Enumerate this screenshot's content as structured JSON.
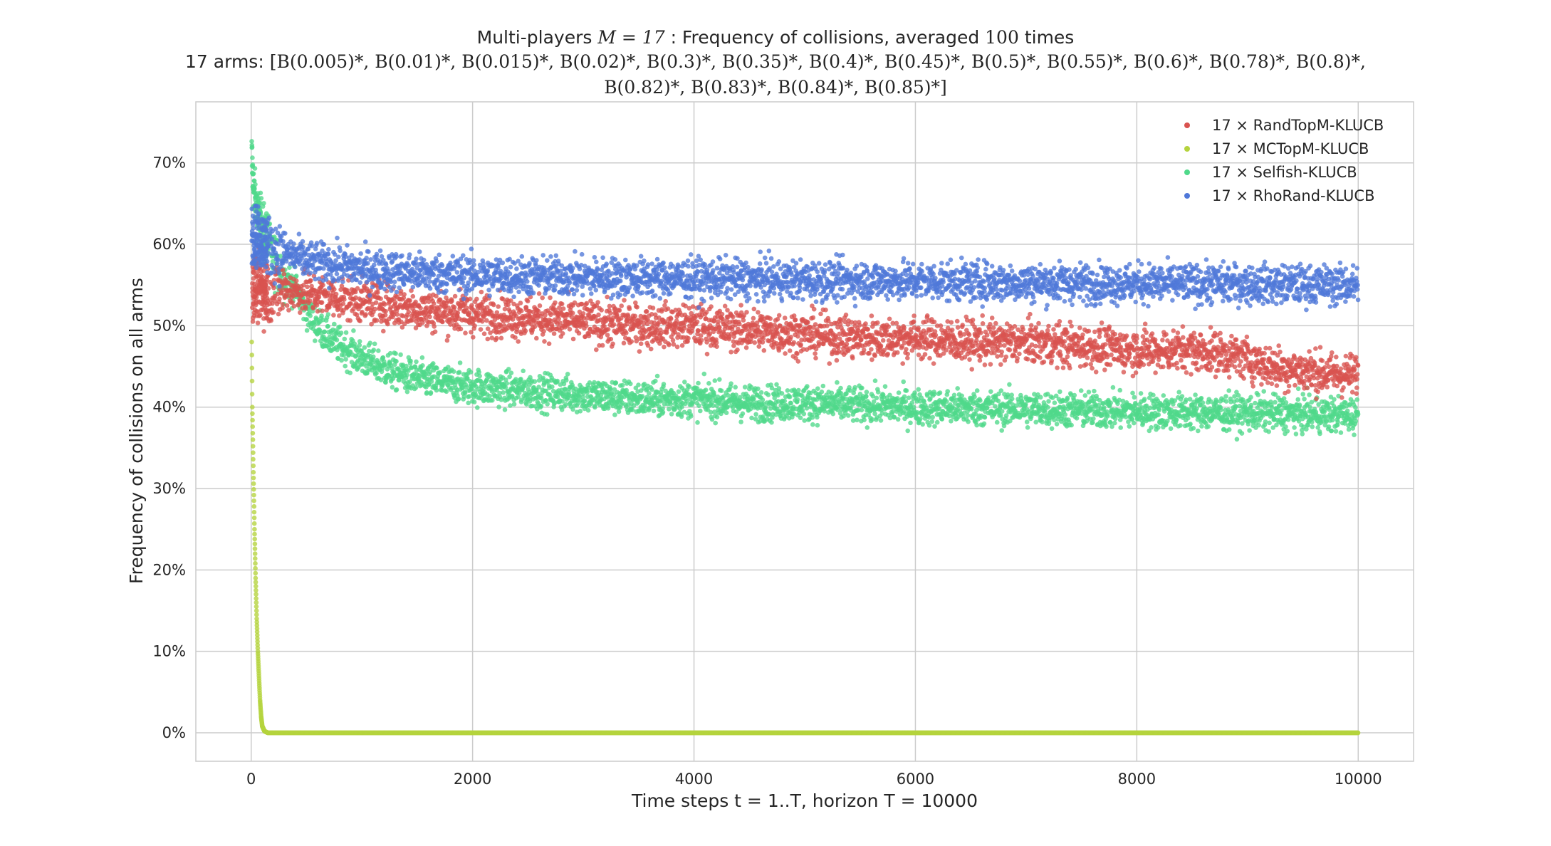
{
  "title": {
    "line1_prefix": "Multi-players",
    "line1_math": "M = 17",
    "line1_suffix": ": Frequency of collisions, averaged",
    "line1_math2": "100",
    "line1_end": "times",
    "line2_prefix": "17 arms:",
    "line2_math": "[B(0.005)*, B(0.01)*, B(0.015)*, B(0.02)*, B(0.3)*, B(0.35)*, B(0.4)*, B(0.45)*, B(0.5)*, B(0.55)*, B(0.6)*, B(0.78)*, B(0.8)*,",
    "line3_math": "B(0.82)*, B(0.83)*, B(0.84)*, B(0.85)*]"
  },
  "chart_data": {
    "type": "scatter",
    "xlabel": "Time steps t = 1..T, horizon T = 10000",
    "ylabel": "Frequency of collisions on all arms",
    "xlim": [
      -500,
      10500
    ],
    "ylim": [
      -0.035,
      0.775
    ],
    "xticks": [
      0,
      2000,
      4000,
      6000,
      8000,
      10000
    ],
    "xtick_labels": [
      "0",
      "2000",
      "4000",
      "6000",
      "8000",
      "10000"
    ],
    "yticks": [
      0,
      0.1,
      0.2,
      0.3,
      0.4,
      0.5,
      0.6,
      0.7
    ],
    "ytick_labels": [
      "0%",
      "10%",
      "20%",
      "30%",
      "40%",
      "50%",
      "60%",
      "70%"
    ],
    "grid": true,
    "legend_position": "top-right",
    "series": [
      {
        "name": "17 × RandTopM-KLUCB",
        "color": "#d9534f",
        "x": [
          10,
          100,
          200,
          300,
          500,
          750,
          1000,
          1500,
          2000,
          2500,
          3000,
          3500,
          4000,
          4500,
          5000,
          5500,
          6000,
          6500,
          7000,
          7500,
          8000,
          8500,
          8800,
          9000,
          9200,
          9500,
          9800,
          10000
        ],
        "y": [
          0.55,
          0.545,
          0.54,
          0.545,
          0.54,
          0.535,
          0.53,
          0.52,
          0.515,
          0.51,
          0.505,
          0.5,
          0.5,
          0.495,
          0.49,
          0.485,
          0.485,
          0.48,
          0.48,
          0.475,
          0.47,
          0.47,
          0.465,
          0.46,
          0.45,
          0.445,
          0.44,
          0.44
        ],
        "spread": 0.013
      },
      {
        "name": "17 × MCTopM-KLUCB",
        "color": "#b5d33d",
        "x": [
          5,
          10,
          20,
          30,
          40,
          50,
          60,
          70,
          80,
          90,
          100,
          120,
          150,
          200,
          300,
          1000,
          2000,
          4000,
          6000,
          8000,
          10000
        ],
        "y": [
          0.48,
          0.4,
          0.32,
          0.25,
          0.19,
          0.14,
          0.1,
          0.07,
          0.04,
          0.02,
          0.008,
          0.002,
          0.0,
          0.0,
          0.0,
          0.0,
          0.0,
          0.0,
          0.0,
          0.0,
          0.0
        ],
        "spread": 0.0
      },
      {
        "name": "17 × Selfish-KLUCB",
        "color": "#4fd98a",
        "x": [
          5,
          20,
          50,
          100,
          200,
          300,
          400,
          500,
          600,
          750,
          1000,
          1250,
          1500,
          2000,
          2500,
          3000,
          3500,
          4000,
          4500,
          5000,
          6000,
          7000,
          8000,
          9000,
          10000
        ],
        "y": [
          0.71,
          0.67,
          0.64,
          0.62,
          0.585,
          0.56,
          0.545,
          0.52,
          0.5,
          0.48,
          0.46,
          0.445,
          0.435,
          0.425,
          0.42,
          0.415,
          0.41,
          0.41,
          0.405,
          0.405,
          0.4,
          0.398,
          0.395,
          0.393,
          0.39
        ],
        "spread": 0.011
      },
      {
        "name": "17 × RhoRand-KLUCB",
        "color": "#4f78d9",
        "x": [
          5,
          50,
          100,
          200,
          300,
          500,
          750,
          1000,
          1500,
          2000,
          3000,
          4000,
          5000,
          6000,
          7000,
          8000,
          9000,
          10000
        ],
        "y": [
          0.615,
          0.61,
          0.605,
          0.595,
          0.59,
          0.58,
          0.575,
          0.57,
          0.565,
          0.562,
          0.56,
          0.558,
          0.556,
          0.555,
          0.553,
          0.552,
          0.551,
          0.55
        ],
        "spread": 0.012
      }
    ]
  }
}
